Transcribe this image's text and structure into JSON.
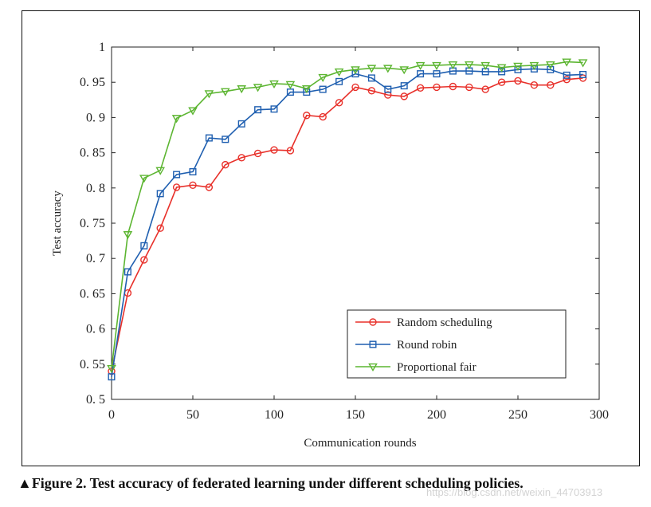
{
  "chart_data": {
    "type": "line",
    "title": "",
    "xlabel": "Communication rounds",
    "ylabel": "Test accuracy",
    "xlim": [
      0,
      300
    ],
    "ylim": [
      0.5,
      1
    ],
    "x_ticks": [
      0,
      50,
      100,
      150,
      200,
      250,
      300
    ],
    "x_tick_labels": [
      "0",
      "50",
      "100",
      "150",
      "200",
      "250",
      "300"
    ],
    "y_ticks": [
      0.5,
      0.55,
      0.6,
      0.65,
      0.7,
      0.75,
      0.8,
      0.85,
      0.9,
      0.95,
      1
    ],
    "y_tick_labels": [
      "0. 5",
      "0. 55",
      "0. 6",
      "0. 65",
      "0. 7",
      "0. 75",
      "0. 8",
      "0. 85",
      "0. 9",
      "0. 95",
      "1"
    ],
    "grid": false,
    "legend_position": "bottom-right",
    "x": [
      0,
      10,
      20,
      30,
      40,
      50,
      60,
      70,
      80,
      90,
      100,
      110,
      120,
      130,
      140,
      150,
      160,
      170,
      180,
      190,
      200,
      210,
      220,
      230,
      240,
      250,
      260,
      270,
      280,
      290
    ],
    "series": [
      {
        "name": "Random scheduling",
        "color": "#e8302a",
        "marker": "circle",
        "values": [
          0.54,
          0.651,
          0.698,
          0.743,
          0.801,
          0.804,
          0.801,
          0.833,
          0.843,
          0.849,
          0.854,
          0.853,
          0.903,
          0.901,
          0.921,
          0.943,
          0.938,
          0.932,
          0.93,
          0.942,
          0.943,
          0.944,
          0.943,
          0.94,
          0.95,
          0.952,
          0.946,
          0.946,
          0.954,
          0.956
        ]
      },
      {
        "name": "Round robin",
        "color": "#1f5fb0",
        "marker": "square",
        "values": [
          0.532,
          0.681,
          0.718,
          0.792,
          0.819,
          0.823,
          0.871,
          0.869,
          0.891,
          0.911,
          0.912,
          0.936,
          0.936,
          0.94,
          0.951,
          0.962,
          0.956,
          0.94,
          0.945,
          0.962,
          0.962,
          0.966,
          0.966,
          0.965,
          0.965,
          0.968,
          0.969,
          0.968,
          0.96,
          0.961
        ]
      },
      {
        "name": "Proportional fair",
        "color": "#5cb531",
        "marker": "triangle-down",
        "values": [
          0.544,
          0.734,
          0.814,
          0.825,
          0.899,
          0.91,
          0.934,
          0.937,
          0.941,
          0.943,
          0.948,
          0.947,
          0.941,
          0.957,
          0.965,
          0.968,
          0.97,
          0.97,
          0.968,
          0.974,
          0.974,
          0.975,
          0.975,
          0.974,
          0.971,
          0.973,
          0.974,
          0.975,
          0.979,
          0.978
        ]
      }
    ]
  },
  "caption": "▲Figure 2. Test accuracy of federated learning under different scheduling policies.",
  "watermark": "https://blog.csdn.net/weixin_44703913"
}
